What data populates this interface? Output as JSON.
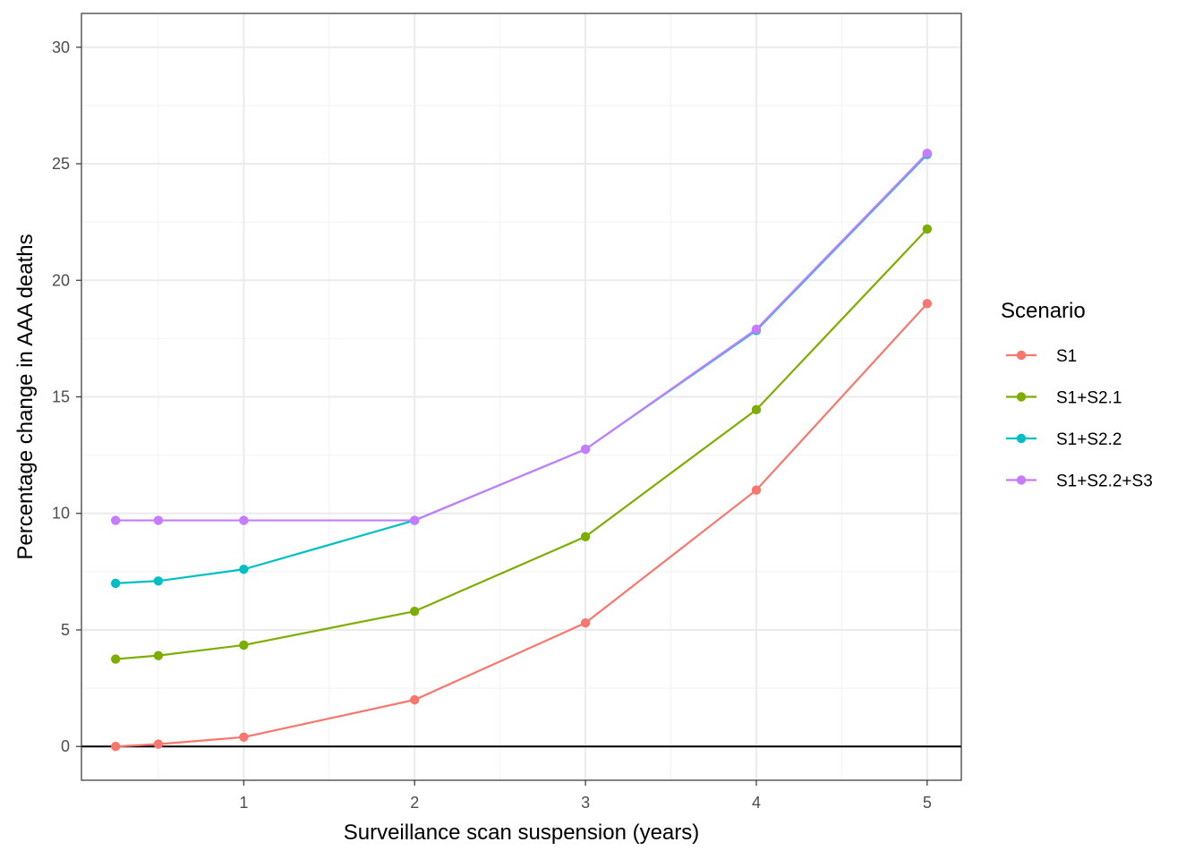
{
  "chart_data": {
    "type": "line",
    "xlabel": "Surveillance scan suspension (years)",
    "ylabel": "Percentage change in AAA deaths",
    "xlim": [
      0.05,
      5.2
    ],
    "ylim": [
      -1.45,
      31.45
    ],
    "x_ticks": [
      1,
      2,
      3,
      4,
      5
    ],
    "y_ticks": [
      0,
      5,
      10,
      15,
      20,
      25,
      30
    ],
    "grid": true,
    "reference_line_y": 0,
    "legend": {
      "title": "Scenario",
      "position": "right"
    },
    "x": [
      0.25,
      0.5,
      1,
      2,
      3,
      4,
      5
    ],
    "series": [
      {
        "name": "S1",
        "color": "#F8766D",
        "values": [
          0.0,
          0.1,
          0.4,
          2.0,
          5.3,
          11.0,
          19.0
        ]
      },
      {
        "name": "S1+S2.1",
        "color": "#7CAE00",
        "values": [
          3.75,
          3.9,
          4.35,
          5.8,
          9.0,
          14.45,
          22.2
        ]
      },
      {
        "name": "S1+S2.2",
        "color": "#00BFC4",
        "values": [
          7.0,
          7.1,
          7.6,
          9.7,
          12.75,
          17.85,
          25.4
        ]
      },
      {
        "name": "S1+S2.2+S3",
        "color": "#C77CFF",
        "values": [
          9.7,
          9.7,
          9.7,
          9.7,
          12.75,
          17.9,
          25.45
        ]
      }
    ]
  }
}
